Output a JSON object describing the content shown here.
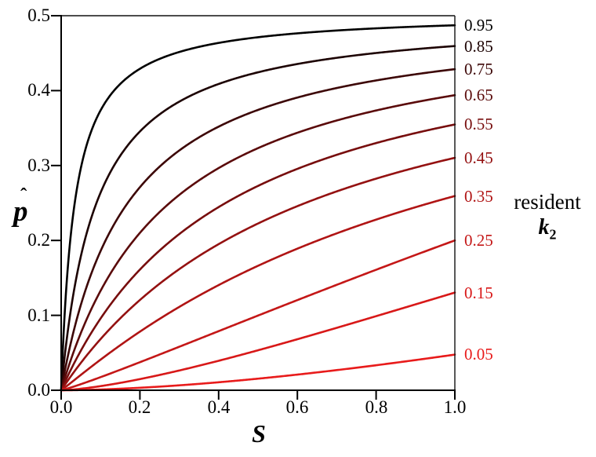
{
  "axes": {
    "x": {
      "label": "S",
      "ticks": [
        "0.0",
        "0.2",
        "0.4",
        "0.6",
        "0.8",
        "1.0"
      ]
    },
    "y": {
      "label": "p̂",
      "label_base": "p",
      "label_hat": "ˆ",
      "ticks": [
        "0.0",
        "0.1",
        "0.2",
        "0.3",
        "0.4",
        "0.5"
      ]
    }
  },
  "legend": {
    "line1": "resident",
    "symbol_base": "k",
    "symbol_sub": "2"
  },
  "chart_data": {
    "type": "line",
    "title": "",
    "xlabel": "S",
    "ylabel": "p̂",
    "xlim": [
      0,
      1
    ],
    "ylim": [
      0,
      0.5
    ],
    "grid": false,
    "legend_position": "right",
    "legend_title": "resident k₂",
    "curve_model": "p(S) = E * S^a * (1+c) / (S^a + c), where E = value at S=1; curves for resident k2 from 0.95 (black, top) to 0.05 (red, bottom), all passing through the origin",
    "x_samples": [
      0,
      0.1,
      0.2,
      0.3,
      0.4,
      0.5,
      0.6,
      0.7,
      0.8,
      0.9,
      1.0
    ],
    "series": [
      {
        "name": "0.95",
        "k2": 0.95,
        "color": "#000000",
        "fit": {
          "E": 0.4872,
          "a": 1.0,
          "c": 0.035
        },
        "values": [
          0,
          0.373,
          0.429,
          0.451,
          0.464,
          0.471,
          0.476,
          0.48,
          0.483,
          0.485,
          0.487
        ]
      },
      {
        "name": "0.85",
        "k2": 0.85,
        "color": "#1c0202",
        "fit": {
          "E": 0.4595,
          "a": 1.0,
          "c": 0.09
        },
        "values": [
          0,
          0.264,
          0.345,
          0.385,
          0.409,
          0.424,
          0.436,
          0.444,
          0.45,
          0.455,
          0.459
        ]
      },
      {
        "name": "0.75",
        "k2": 0.75,
        "color": "#3c0606",
        "fit": {
          "E": 0.4286,
          "a": 1.0,
          "c": 0.17
        },
        "values": [
          0,
          0.186,
          0.271,
          0.32,
          0.352,
          0.374,
          0.391,
          0.404,
          0.414,
          0.422,
          0.429
        ]
      },
      {
        "name": "0.65",
        "k2": 0.65,
        "color": "#5a0a0a",
        "fit": {
          "E": 0.3939,
          "a": 1.0,
          "c": 0.28
        },
        "values": [
          0,
          0.133,
          0.21,
          0.261,
          0.297,
          0.323,
          0.344,
          0.36,
          0.373,
          0.385,
          0.394
        ]
      },
      {
        "name": "0.55",
        "k2": 0.55,
        "color": "#770d0d",
        "fit": {
          "E": 0.3548,
          "a": 1.0,
          "c": 0.43
        },
        "values": [
          0,
          0.096,
          0.161,
          0.209,
          0.245,
          0.273,
          0.296,
          0.314,
          0.33,
          0.343,
          0.355
        ]
      },
      {
        "name": "0.45",
        "k2": 0.45,
        "color": "#941111",
        "fit": {
          "E": 0.3103,
          "a": 1.0,
          "c": 0.65
        },
        "values": [
          0,
          0.068,
          0.12,
          0.162,
          0.195,
          0.223,
          0.246,
          0.265,
          0.283,
          0.297,
          0.31
        ]
      },
      {
        "name": "0.35",
        "k2": 0.35,
        "color": "#b01414",
        "fit": {
          "E": 0.2593,
          "a": 1.05,
          "c": 1.1
        },
        "values": [
          0,
          0.041,
          0.078,
          0.111,
          0.14,
          0.166,
          0.189,
          0.21,
          0.228,
          0.244,
          0.259
        ]
      },
      {
        "name": "0.25",
        "k2": 0.25,
        "color": "#c41717",
        "fit": {
          "E": 0.2,
          "a": 1.12,
          "c": 6.0
        },
        "values": [
          0,
          0.017,
          0.037,
          0.058,
          0.079,
          0.1,
          0.12,
          0.141,
          0.161,
          0.181,
          0.2
        ]
      },
      {
        "name": "0.15",
        "k2": 0.15,
        "color": "#d81818",
        "fit": {
          "E": 0.1304,
          "a": 1.45,
          "c": 5.0
        },
        "values": [
          0,
          0.006,
          0.015,
          0.026,
          0.039,
          0.053,
          0.068,
          0.083,
          0.099,
          0.115,
          0.13
        ]
      },
      {
        "name": "0.05",
        "k2": 0.05,
        "color": "#e81b1b",
        "fit": {
          "E": 0.0476,
          "a": 1.7,
          "c": 12.0
        },
        "values": [
          0,
          0.001,
          0.003,
          0.007,
          0.011,
          0.015,
          0.021,
          0.027,
          0.033,
          0.04,
          0.048
        ]
      }
    ]
  },
  "style": {
    "axis_color": "#000000",
    "frame_color": "#111111",
    "background": "#ffffff"
  }
}
